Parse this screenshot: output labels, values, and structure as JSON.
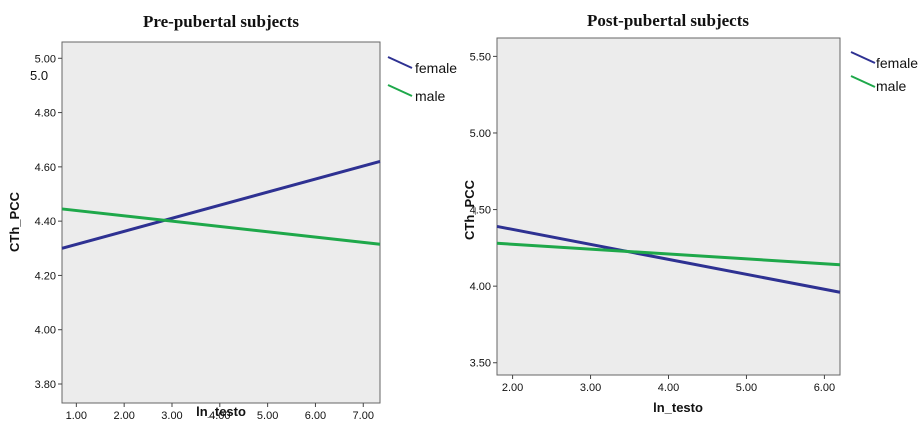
{
  "colors": {
    "female": "#2e3192",
    "male": "#1ea84a",
    "plot_bg": "#ececec"
  },
  "chart_data": [
    {
      "type": "line",
      "title": "Pre-pubertal subjects",
      "xlabel": "ln_testo",
      "ylabel": "CTh_PCC",
      "xlim": [
        0.7,
        7.35
      ],
      "ylim": [
        3.73,
        5.06
      ],
      "x_ticks": [
        "1.00",
        "2.00",
        "3.00",
        "4.00",
        "5.00",
        "6.00",
        "7.00"
      ],
      "y_ticks": [
        "3.80",
        "4.00",
        "4.20",
        "4.40",
        "4.60",
        "4.80",
        "5.00"
      ],
      "extra_label": "5.0",
      "series": [
        {
          "name": "female",
          "x": [
            0.7,
            7.35
          ],
          "y": [
            4.3,
            4.62
          ]
        },
        {
          "name": "male",
          "x": [
            0.7,
            7.35
          ],
          "y": [
            4.445,
            4.315
          ]
        }
      ]
    },
    {
      "type": "line",
      "title": "Post-pubertal subjects",
      "xlabel": "ln_testo",
      "ylabel": "CTh_PCC",
      "xlim": [
        1.8,
        6.2
      ],
      "ylim": [
        3.42,
        5.62
      ],
      "x_ticks": [
        "2.00",
        "3.00",
        "4.00",
        "5.00",
        "6.00"
      ],
      "y_ticks": [
        "3.50",
        "4.00",
        "4.50",
        "5.00",
        "5.50"
      ],
      "series": [
        {
          "name": "female",
          "x": [
            1.8,
            6.2
          ],
          "y": [
            4.39,
            3.96
          ]
        },
        {
          "name": "male",
          "x": [
            1.8,
            6.2
          ],
          "y": [
            4.28,
            4.14
          ]
        }
      ]
    }
  ]
}
